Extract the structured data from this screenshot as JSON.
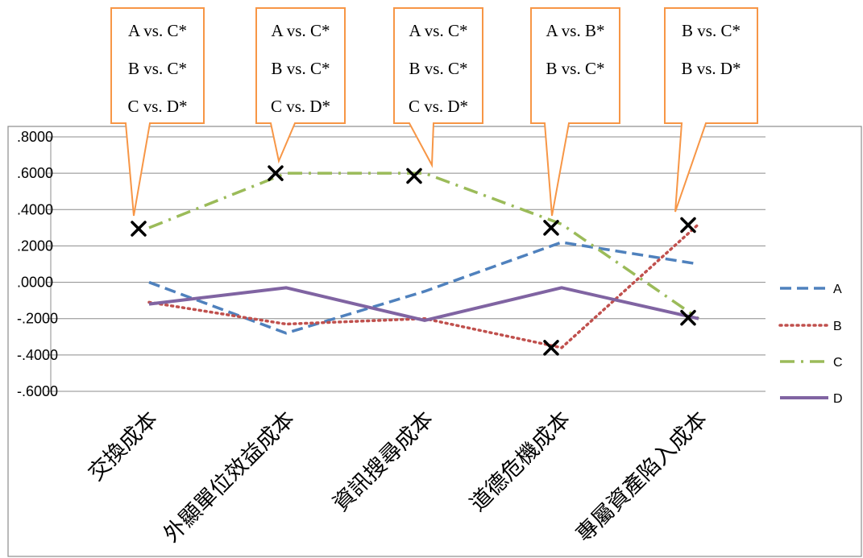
{
  "chart_data": {
    "type": "line",
    "categories": [
      "交換成本",
      "外顯單位效益成本",
      "資訊搜尋成本",
      "道德危機成本",
      "專屬資產陷入成本"
    ],
    "y_ticks": [
      ".8000",
      ".6000",
      ".4000",
      ".2000",
      ".0000",
      "-.2000",
      "-.4000",
      "-.6000"
    ],
    "ylim": [
      -0.6,
      0.8
    ],
    "grid": true,
    "legend_position": "right",
    "series": [
      {
        "name": "A",
        "values": [
          0.0,
          -0.28,
          -0.05,
          0.22,
          0.1
        ],
        "color": "#4F81BD",
        "style": "dashed"
      },
      {
        "name": "B",
        "values": [
          -0.11,
          -0.23,
          -0.2,
          -0.36,
          0.32
        ],
        "color": "#C0504D",
        "style": "dotted"
      },
      {
        "name": "C",
        "values": [
          0.3,
          0.6,
          0.6,
          0.32,
          -0.2
        ],
        "color": "#9BBB59",
        "style": "dash-dot"
      },
      {
        "name": "D",
        "values": [
          -0.12,
          -0.03,
          -0.21,
          -0.03,
          -0.2
        ],
        "color": "#8064A2",
        "style": "solid"
      }
    ],
    "markers": [
      {
        "category": "交換成本",
        "value": 0.295
      },
      {
        "category": "外顯單位效益成本",
        "value": 0.6
      },
      {
        "category": "資訊搜尋成本",
        "value": 0.585
      },
      {
        "category": "道德危機成本",
        "value": 0.3
      },
      {
        "category": "道德危機成本",
        "value": -0.36
      },
      {
        "category": "專屬資產陷入成本",
        "value": 0.315
      },
      {
        "category": "專屬資產陷入成本",
        "value": -0.195
      }
    ],
    "callouts": [
      {
        "category": "交換成本",
        "lines": [
          "A vs. C*",
          "B vs. C*",
          "C vs. D*"
        ]
      },
      {
        "category": "外顯單位效益成本",
        "lines": [
          "A vs. C*",
          "B vs. C*",
          "C vs. D*"
        ]
      },
      {
        "category": "資訊搜尋成本",
        "lines": [
          "A vs. C*",
          "B vs. C*",
          "C vs. D*"
        ]
      },
      {
        "category": "道德危機成本",
        "lines": [
          "A vs. B*",
          "B vs. C*"
        ]
      },
      {
        "category": "專屬資產陷入成本",
        "lines": [
          "B vs. C*",
          "B vs. D*"
        ]
      }
    ]
  }
}
